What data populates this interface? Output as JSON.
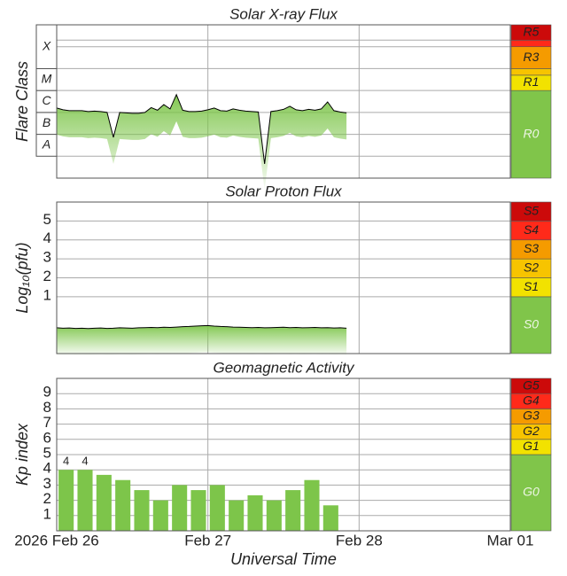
{
  "chart_data": [
    {
      "type": "line",
      "title": "Solar X-ray Flux",
      "y_label": "Flare Class",
      "xlim": [
        0,
        72
      ],
      "xgrid": [
        24,
        48
      ],
      "ylim": [
        -9,
        -2
      ],
      "ygrid": [
        -8,
        -7,
        -6,
        -5,
        -4,
        -3,
        -2.7
      ],
      "classes": [
        {
          "label": "A",
          "range": [
            -8,
            -7
          ]
        },
        {
          "label": "B",
          "range": [
            -7,
            -6
          ]
        },
        {
          "label": "C",
          "range": [
            -6,
            -5
          ]
        },
        {
          "label": "M",
          "range": [
            -5,
            -4
          ]
        },
        {
          "label": "X",
          "range": [
            -4,
            -2
          ]
        }
      ],
      "scale": [
        {
          "label": "R0",
          "range": [
            -9,
            -5
          ],
          "color": "#80c54a"
        },
        {
          "label": "R1",
          "range": [
            -5,
            -4.3
          ],
          "color": "#f2e200"
        },
        {
          "label": null,
          "range": [
            -4.3,
            -4
          ],
          "color": "#f7c400"
        },
        {
          "label": "R3",
          "range": [
            -4,
            -3
          ],
          "color": "#f59b00"
        },
        {
          "label": null,
          "range": [
            -3,
            -2.7
          ],
          "color": "#ff2a1a"
        },
        {
          "label": "R5",
          "range": [
            -2.7,
            -2
          ],
          "color": "#cc0a0a"
        }
      ],
      "color": "#000000",
      "fill": "#7dc54a",
      "x": [
        0,
        1,
        2,
        3,
        4,
        5,
        6,
        7,
        8,
        9,
        10,
        11,
        12,
        13,
        14,
        15,
        16,
        17,
        18,
        19,
        20,
        21,
        22,
        23,
        24,
        25,
        26,
        27,
        28,
        29,
        30,
        31,
        32,
        33,
        34,
        35,
        36,
        37,
        38,
        39,
        40,
        41,
        42,
        43,
        44,
        45,
        46
      ],
      "values": [
        -5.8,
        -5.88,
        -5.92,
        -5.92,
        -5.92,
        -5.96,
        -5.94,
        -5.96,
        -6.0,
        -7.14,
        -6.0,
        -6.02,
        -6.04,
        -6.04,
        -6.0,
        -5.78,
        -5.9,
        -5.64,
        -5.84,
        -5.19,
        -5.9,
        -5.96,
        -5.96,
        -5.94,
        -5.88,
        -5.8,
        -5.92,
        -5.94,
        -5.84,
        -5.9,
        -5.94,
        -5.96,
        -5.98,
        -8.35,
        -5.96,
        -5.92,
        -5.86,
        -5.72,
        -5.88,
        -5.92,
        -5.86,
        -5.9,
        -5.84,
        -5.52,
        -5.92,
        -5.98,
        -6.02
      ]
    },
    {
      "type": "line",
      "title": "Solar Proton Flux",
      "y_label": "Log₁₀(pfu)",
      "xlim": [
        0,
        72
      ],
      "xgrid": [
        24,
        48
      ],
      "ylim": [
        -2,
        6
      ],
      "yticks": [
        1,
        2,
        3,
        4,
        5
      ],
      "scale": [
        {
          "label": "S0",
          "range": [
            -2,
            1
          ],
          "color": "#80c54a"
        },
        {
          "label": "S1",
          "range": [
            1,
            2
          ],
          "color": "#f2e200"
        },
        {
          "label": "S2",
          "range": [
            2,
            3
          ],
          "color": "#f7c400"
        },
        {
          "label": "S3",
          "range": [
            3,
            4
          ],
          "color": "#f59b00"
        },
        {
          "label": "S4",
          "range": [
            4,
            5
          ],
          "color": "#ff2a1a"
        },
        {
          "label": "S5",
          "range": [
            5,
            6
          ],
          "color": "#cc0a0a"
        }
      ],
      "color": "#000000",
      "fill": "#7dc54a",
      "x": [
        0,
        1,
        2,
        3,
        4,
        5,
        6,
        7,
        8,
        9,
        10,
        11,
        12,
        13,
        14,
        15,
        16,
        17,
        18,
        19,
        20,
        21,
        22,
        23,
        24,
        25,
        26,
        27,
        28,
        29,
        30,
        31,
        32,
        33,
        34,
        35,
        36,
        37,
        38,
        39,
        40,
        41,
        42,
        43,
        44,
        45,
        46
      ],
      "values": [
        -0.64,
        -0.66,
        -0.65,
        -0.67,
        -0.66,
        -0.68,
        -0.66,
        -0.65,
        -0.67,
        -0.66,
        -0.64,
        -0.65,
        -0.66,
        -0.64,
        -0.63,
        -0.62,
        -0.63,
        -0.61,
        -0.62,
        -0.6,
        -0.58,
        -0.57,
        -0.55,
        -0.53,
        -0.52,
        -0.55,
        -0.57,
        -0.58,
        -0.6,
        -0.61,
        -0.62,
        -0.63,
        -0.62,
        -0.64,
        -0.63,
        -0.62,
        -0.61,
        -0.63,
        -0.62,
        -0.64,
        -0.63,
        -0.62,
        -0.64,
        -0.63,
        -0.65,
        -0.64,
        -0.66
      ]
    },
    {
      "type": "bar",
      "title": "Geomagnetic Activity",
      "y_label": "Kp index",
      "x_label": "Universal Time",
      "xlim": [
        0,
        72
      ],
      "xticks": [
        {
          "value": 0,
          "label": "2026 Feb 26"
        },
        {
          "value": 24,
          "label": "Feb 27"
        },
        {
          "value": 48,
          "label": "Feb 28"
        },
        {
          "value": 72,
          "label": "Mar 01"
        }
      ],
      "ylim": [
        0,
        10
      ],
      "yticks": [
        1,
        2,
        3,
        4,
        5,
        6,
        7,
        8,
        9
      ],
      "scale": [
        {
          "label": "G0",
          "range": [
            0,
            5
          ],
          "color": "#80c54a"
        },
        {
          "label": "G1",
          "range": [
            5,
            6
          ],
          "color": "#f2e200"
        },
        {
          "label": "G2",
          "range": [
            6,
            7
          ],
          "color": "#f7c400"
        },
        {
          "label": "G3",
          "range": [
            7,
            8
          ],
          "color": "#f59b00"
        },
        {
          "label": "G4",
          "range": [
            8,
            9
          ],
          "color": "#ff2a1a"
        },
        {
          "label": "G5",
          "range": [
            9,
            10
          ],
          "color": "#cc0a0a"
        }
      ],
      "color": "#7dc54a",
      "x": [
        0,
        3,
        6,
        9,
        12,
        15,
        18,
        21,
        24,
        27,
        30,
        33,
        36,
        39,
        42
      ],
      "values": [
        4,
        4,
        3.67,
        3.33,
        2.67,
        2,
        3,
        2.67,
        3,
        2,
        2.33,
        2,
        2.67,
        3.33,
        1.67
      ],
      "value_labels": [
        "4",
        "4",
        null,
        null,
        null,
        null,
        null,
        null,
        null,
        null,
        null,
        null,
        null,
        null,
        null
      ]
    }
  ]
}
